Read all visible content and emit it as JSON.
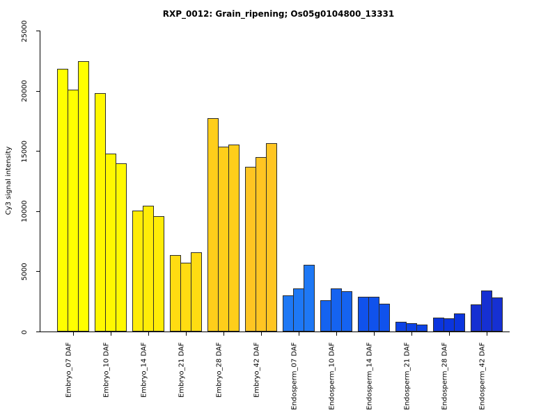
{
  "chart_data": {
    "type": "bar",
    "title": "RXP_0012: Grain_ripening; Os05g0104800_13331",
    "xlabel": "",
    "ylabel": "Cy3 signal intensity",
    "ylim": [
      0,
      25000
    ],
    "yticks": [
      0,
      5000,
      10000,
      15000,
      20000,
      25000
    ],
    "grid": false,
    "legend_position": "none",
    "bars_per_group": 3,
    "categories": [
      "Embryo_07 DAF",
      "Embryo_10 DAF",
      "Embryo_14 DAF",
      "Embryo_21 DAF",
      "Embryo_28 DAF",
      "Embryo_42 DAF",
      "Endosperm_07 DAF",
      "Endosperm_10 DAF",
      "Endosperm_14 DAF",
      "Endosperm_21 DAF",
      "Endosperm_28 DAF",
      "Endosperm_42 DAF"
    ],
    "groups": [
      {
        "label": "Embryo_07 DAF",
        "color": "#FFFF00",
        "values": [
          21850,
          20100,
          22500
        ]
      },
      {
        "label": "Embryo_10 DAF",
        "color": "#FFF800",
        "values": [
          19850,
          14800,
          14000
        ]
      },
      {
        "label": "Embryo_14 DAF",
        "color": "#FFEC08",
        "values": [
          10100,
          10500,
          9600
        ]
      },
      {
        "label": "Embryo_21 DAF",
        "color": "#FFDC12",
        "values": [
          6400,
          5750,
          6600
        ]
      },
      {
        "label": "Embryo_28 DAF",
        "color": "#FFCE1A",
        "values": [
          17750,
          15400,
          15550
        ]
      },
      {
        "label": "Embryo_42 DAF",
        "color": "#FFC522",
        "values": [
          13700,
          14500,
          15650
        ]
      },
      {
        "label": "Endosperm_07 DAF",
        "color": "#1E78F5",
        "values": [
          3050,
          3600,
          5550
        ]
      },
      {
        "label": "Endosperm_10 DAF",
        "color": "#1563F0",
        "values": [
          2650,
          3600,
          3350
        ]
      },
      {
        "label": "Endosperm_14 DAF",
        "color": "#1052EC",
        "values": [
          2900,
          2900,
          2350
        ]
      },
      {
        "label": "Endosperm_21 DAF",
        "color": "#0D43E6",
        "values": [
          850,
          750,
          620
        ]
      },
      {
        "label": "Endosperm_28 DAF",
        "color": "#0B35DE",
        "values": [
          1200,
          1100,
          1530
        ]
      },
      {
        "label": "Endosperm_42 DAF",
        "color": "#1630D2",
        "values": [
          2300,
          3420,
          2840
        ]
      }
    ],
    "bar_border_color": "#2b2b2b",
    "axis_color": "#000000",
    "background_color": "#FFFFFF"
  }
}
